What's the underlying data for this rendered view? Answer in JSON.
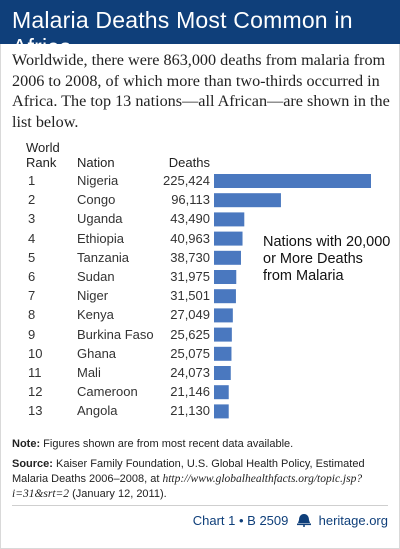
{
  "header": {
    "title": "Malaria Deaths Most Common in Africa"
  },
  "intro": "Worldwide, there were 863,000 deaths from malaria from 2006 to 2008, of which more than two-thirds occurred in Africa. The top 13 nations—all African—are shown in the list below.",
  "columns": {
    "rank_line1": "World",
    "rank_line2": "Rank",
    "nation": "Nation",
    "deaths": "Deaths"
  },
  "callout": "Nations with 20,000 or More Deaths from Malaria",
  "note": {
    "label": "Note:",
    "text": " Figures shown are from most recent data available."
  },
  "source": {
    "label": "Source:",
    "text": " Kaiser Family Foundation, U.S. Global Health Policy, Estimated Malaria Deaths 2006–2008, at ",
    "url": "http://www.globalhealthfacts.org/topic.jsp?i=31&srt=2",
    "date": " (January 12, 2011)."
  },
  "footer": {
    "chart_ref": "Chart 1 • B 2509",
    "site": "heritage.org"
  },
  "colors": {
    "title_bar": "#0f3f7a",
    "bar": "#4a78bf"
  },
  "chart_data": {
    "type": "bar",
    "orientation": "horizontal",
    "title": "Malaria Deaths Most Common in Africa",
    "ranks": [
      "1",
      "2",
      "3",
      "4",
      "5",
      "6",
      "7",
      "8",
      "9",
      "10",
      "11",
      "12",
      "13"
    ],
    "categories": [
      "Nigeria",
      "Congo",
      "Uganda",
      "Ethiopia",
      "Tanzania",
      "Sudan",
      "Niger",
      "Kenya",
      "Burkina Faso",
      "Ghana",
      "Mali",
      "Cameroon",
      "Angola"
    ],
    "value_labels": [
      "225,424",
      "96,113",
      "43,490",
      "40,963",
      "38,730",
      "31,975",
      "31,501",
      "27,049",
      "25,625",
      "25,075",
      "24,073",
      "21,146",
      "21,130"
    ],
    "values": [
      225424,
      96113,
      43490,
      40963,
      38730,
      31975,
      31501,
      27049,
      25625,
      25075,
      24073,
      21146,
      21130
    ],
    "xlim": [
      0,
      225424
    ],
    "grid": false,
    "legend": "none"
  }
}
